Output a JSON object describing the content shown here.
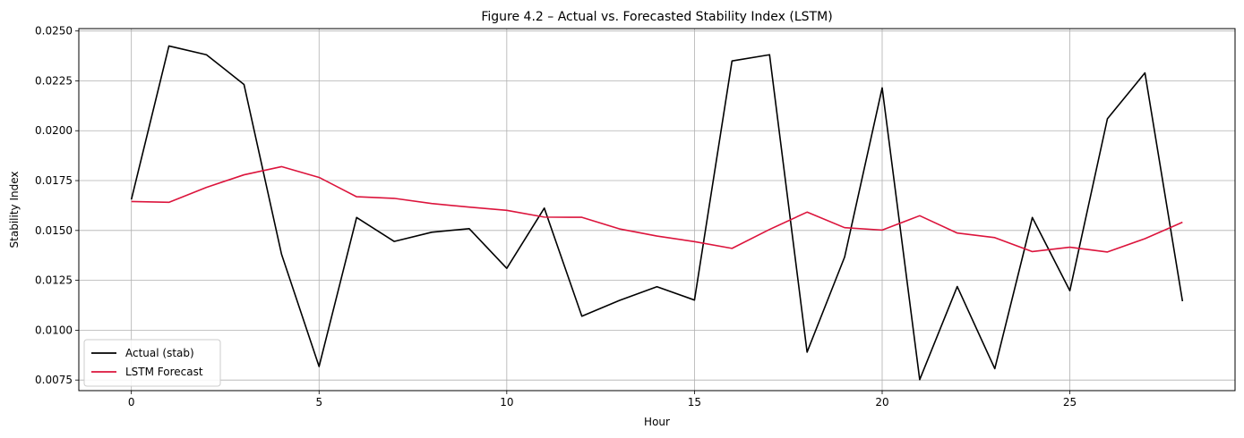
{
  "chart_data": {
    "type": "line",
    "title": "Figure 4.2 – Actual vs. Forecasted Stability Index (LSTM)",
    "xlabel": "Hour",
    "ylabel": "Stability Index",
    "xlim": [
      -1.4,
      29.4
    ],
    "ylim": [
      0.00697,
      0.02512
    ],
    "xticks": [
      0,
      5,
      10,
      15,
      20,
      25
    ],
    "xtick_labels": [
      "0",
      "5",
      "10",
      "15",
      "20",
      "25"
    ],
    "yticks": [
      0.0075,
      0.01,
      0.0125,
      0.015,
      0.0175,
      0.02,
      0.0225,
      0.025
    ],
    "ytick_labels": [
      "0.0075",
      "0.0100",
      "0.0125",
      "0.0150",
      "0.0175",
      "0.0200",
      "0.0225",
      "0.0250"
    ],
    "grid": true,
    "legend_position": "lower-left",
    "x": [
      0,
      1,
      2,
      3,
      4,
      5,
      6,
      7,
      8,
      9,
      10,
      11,
      12,
      13,
      14,
      15,
      16,
      17,
      18,
      19,
      20,
      21,
      22,
      23,
      24,
      25,
      26,
      27,
      28
    ],
    "series": [
      {
        "name": "Actual (stab)",
        "color": "#000000",
        "values": [
          0.01655,
          0.02425,
          0.02381,
          0.02232,
          0.01381,
          0.00818,
          0.01565,
          0.01445,
          0.01491,
          0.01509,
          0.0131,
          0.01612,
          0.0107,
          0.01149,
          0.01218,
          0.01151,
          0.0235,
          0.02381,
          0.0089,
          0.01367,
          0.02215,
          0.00752,
          0.01219,
          0.00807,
          0.01565,
          0.01198,
          0.0206,
          0.0229,
          0.01145
        ]
      },
      {
        "name": "LSTM Forecast",
        "color": "#dc143c",
        "values": [
          0.01645,
          0.01641,
          0.01716,
          0.01779,
          0.0182,
          0.01766,
          0.01669,
          0.01661,
          0.01635,
          0.01617,
          0.01601,
          0.01567,
          0.01566,
          0.01508,
          0.01472,
          0.01444,
          0.0141,
          0.01505,
          0.01592,
          0.01514,
          0.01502,
          0.01574,
          0.01487,
          0.01464,
          0.01394,
          0.01416,
          0.01392,
          0.01459,
          0.01541
        ]
      }
    ]
  }
}
